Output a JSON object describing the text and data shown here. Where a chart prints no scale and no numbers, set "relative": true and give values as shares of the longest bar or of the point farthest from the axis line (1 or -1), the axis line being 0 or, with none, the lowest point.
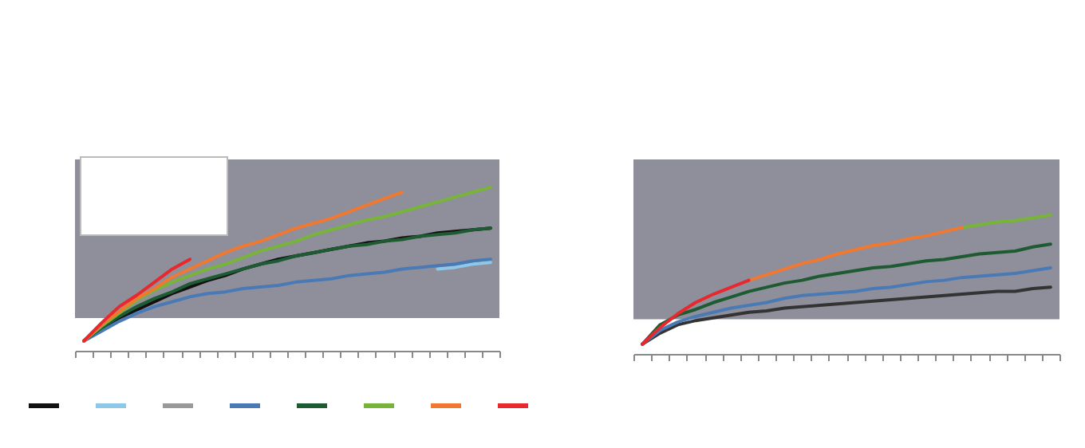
{
  "chart_data": [
    {
      "type": "line",
      "relative": true,
      "tick_labels": false,
      "categories": [
        null,
        null,
        null,
        null,
        null,
        null,
        null,
        null,
        null,
        null,
        null,
        null,
        null,
        null,
        null,
        null,
        null,
        null,
        null,
        null,
        null,
        null,
        null,
        null
      ],
      "bands": [
        {
          "axis": "y",
          "from": 0.2,
          "to": 1.17,
          "color": "#8e8f9b"
        }
      ],
      "series": [
        {
          "color": "#111111",
          "values": [
            0.06,
            0.13,
            0.2,
            0.25,
            0.3,
            0.35,
            0.39,
            0.43,
            0.46,
            0.5,
            0.53,
            0.56,
            0.58,
            0.6,
            0.62,
            0.64,
            0.66,
            0.67,
            0.69,
            0.7,
            0.72,
            0.73,
            0.74,
            0.75
          ]
        },
        {
          "color": "#8ec8e8",
          "values": [
            null,
            null,
            null,
            null,
            null,
            null,
            null,
            null,
            null,
            null,
            null,
            null,
            null,
            null,
            null,
            null,
            null,
            null,
            null,
            null,
            0.5,
            0.51,
            0.53,
            0.54
          ]
        },
        {
          "color": "#999999",
          "values": [
            null,
            null,
            null,
            null,
            null,
            null,
            null,
            null,
            null,
            null,
            null,
            null,
            null,
            null,
            null,
            null,
            null,
            null,
            null,
            null,
            null,
            null,
            null,
            null
          ]
        },
        {
          "color": "#4a7ab5",
          "values": [
            0.06,
            0.12,
            0.18,
            0.23,
            0.27,
            0.3,
            0.33,
            0.35,
            0.36,
            0.38,
            0.39,
            0.4,
            0.42,
            0.43,
            0.44,
            0.46,
            0.47,
            0.48,
            0.5,
            0.51,
            0.52,
            0.53,
            0.55,
            0.56
          ]
        },
        {
          "color": "#1e5a32",
          "values": [
            0.06,
            0.14,
            0.21,
            0.27,
            0.32,
            0.36,
            0.41,
            0.44,
            0.47,
            0.5,
            0.53,
            0.55,
            0.58,
            0.6,
            0.62,
            0.64,
            0.65,
            0.67,
            0.68,
            0.7,
            0.71,
            0.72,
            0.74,
            0.75
          ]
        },
        {
          "color": "#78b439",
          "values": [
            0.06,
            0.15,
            0.23,
            0.31,
            0.37,
            0.42,
            0.46,
            0.5,
            0.53,
            0.57,
            0.61,
            0.64,
            0.67,
            0.71,
            0.74,
            0.77,
            0.8,
            0.82,
            0.85,
            0.88,
            0.91,
            0.94,
            0.97,
            1
          ]
        },
        {
          "color": "#f07830",
          "values": [
            0.06,
            0.16,
            0.24,
            0.32,
            0.38,
            0.45,
            0.5,
            0.55,
            0.6,
            0.64,
            0.67,
            0.71,
            0.75,
            0.78,
            0.81,
            0.85,
            0.89,
            0.93,
            0.97,
            null,
            null,
            null,
            null,
            null
          ]
        },
        {
          "color": "#e8282c",
          "values": [
            0.06,
            0.17,
            0.27,
            0.34,
            0.42,
            0.5,
            0.56,
            null,
            null,
            null,
            null,
            null,
            null,
            null,
            null,
            null,
            null,
            null,
            null,
            null,
            null,
            null,
            null,
            null
          ]
        }
      ]
    },
    {
      "type": "line",
      "relative": true,
      "tick_labels": false,
      "categories": [
        null,
        null,
        null,
        null,
        null,
        null,
        null,
        null,
        null,
        null,
        null,
        null,
        null,
        null,
        null,
        null,
        null,
        null,
        null,
        null,
        null,
        null,
        null,
        null
      ],
      "bands": [
        {
          "axis": "y",
          "from": 0.25,
          "to": 1.4,
          "color": "#8e8f9b"
        }
      ],
      "series": [
        {
          "color": "#333333",
          "values": [
            0.07,
            0.15,
            0.21,
            0.24,
            0.26,
            0.28,
            0.3,
            0.31,
            0.33,
            0.34,
            0.35,
            0.36,
            0.37,
            0.38,
            0.39,
            0.4,
            0.41,
            0.42,
            0.43,
            0.44,
            0.45,
            0.45,
            0.47,
            0.48
          ]
        },
        {
          "color": "#4a7ab5",
          "values": [
            0.07,
            0.17,
            0.23,
            0.27,
            0.3,
            0.33,
            0.35,
            0.37,
            0.4,
            0.42,
            0.43,
            0.44,
            0.45,
            0.47,
            0.48,
            0.5,
            0.52,
            0.53,
            0.55,
            0.56,
            0.57,
            0.58,
            0.6,
            0.62
          ]
        },
        {
          "color": "#1e5a32",
          "values": [
            0.07,
            0.21,
            0.28,
            0.32,
            0.37,
            0.41,
            0.45,
            0.48,
            0.51,
            0.53,
            0.56,
            0.58,
            0.6,
            0.62,
            0.63,
            0.65,
            0.67,
            0.68,
            0.7,
            0.72,
            0.73,
            0.74,
            0.77,
            0.79
          ]
        },
        {
          "color": "#78b439",
          "values": [
            null,
            null,
            null,
            null,
            null,
            null,
            null,
            null,
            null,
            null,
            null,
            null,
            null,
            null,
            null,
            null,
            null,
            null,
            0.91,
            0.93,
            0.95,
            0.96,
            0.98,
            1
          ]
        },
        {
          "color": "#f07830",
          "values": [
            null,
            null,
            null,
            null,
            null,
            null,
            0.53,
            0.57,
            0.61,
            0.65,
            0.68,
            0.72,
            0.75,
            0.78,
            0.8,
            0.83,
            0.85,
            0.88,
            0.91,
            null,
            null,
            null,
            null,
            null
          ]
        },
        {
          "color": "#e8282c",
          "values": [
            0.07,
            0.19,
            0.29,
            0.37,
            0.43,
            0.48,
            0.53,
            null,
            null,
            null,
            null,
            null,
            null,
            null,
            null,
            null,
            null,
            null,
            null,
            null,
            null,
            null,
            null,
            null
          ]
        }
      ]
    }
  ]
}
